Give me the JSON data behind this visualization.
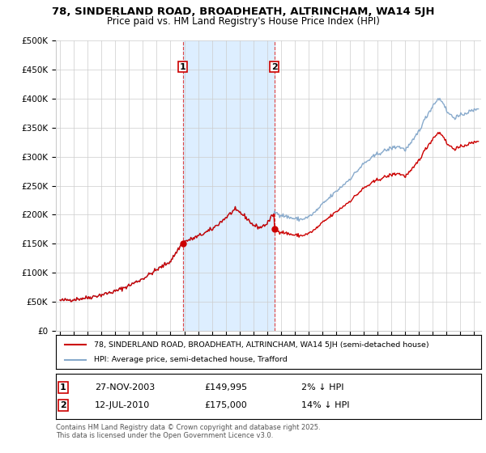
{
  "title_line1": "78, SINDERLAND ROAD, BROADHEATH, ALTRINCHAM, WA14 5JH",
  "title_line2": "Price paid vs. HM Land Registry's House Price Index (HPI)",
  "ylabel_ticks": [
    "£0",
    "£50K",
    "£100K",
    "£150K",
    "£200K",
    "£250K",
    "£300K",
    "£350K",
    "£400K",
    "£450K",
    "£500K"
  ],
  "ytick_values": [
    0,
    50000,
    100000,
    150000,
    200000,
    250000,
    300000,
    350000,
    400000,
    450000,
    500000
  ],
  "ylim": [
    0,
    500000
  ],
  "sale1_date": 2003.9,
  "sale1_price": 149995,
  "sale1_label": "1",
  "sale2_date": 2010.53,
  "sale2_price": 175000,
  "sale2_label": "2",
  "legend_line1": "78, SINDERLAND ROAD, BROADHEATH, ALTRINCHAM, WA14 5JH (semi-detached house)",
  "legend_line2": "HPI: Average price, semi-detached house, Trafford",
  "footer": "Contains HM Land Registry data © Crown copyright and database right 2025.\nThis data is licensed under the Open Government Licence v3.0.",
  "line_color_red": "#cc0000",
  "line_color_blue": "#88aacc",
  "shade_color": "#ddeeff",
  "grid_color": "#cccccc",
  "background_color": "#ffffff",
  "ann1_num": "1",
  "ann1_date": "27-NOV-2003",
  "ann1_price": "£149,995",
  "ann1_hpi": "2% ↓ HPI",
  "ann2_num": "2",
  "ann2_date": "12-JUL-2010",
  "ann2_price": "£175,000",
  "ann2_hpi": "14% ↓ HPI"
}
